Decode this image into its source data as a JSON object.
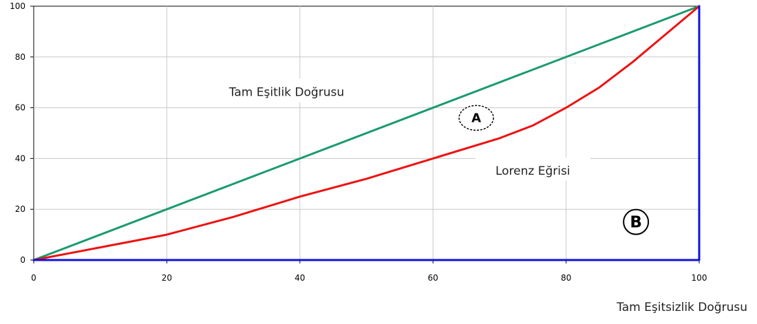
{
  "chart_data": {
    "type": "line",
    "xlim": [
      0,
      100
    ],
    "ylim": [
      0,
      100
    ],
    "x_ticks": [
      0,
      20,
      40,
      60,
      80,
      100
    ],
    "y_ticks": [
      0,
      20,
      40,
      60,
      80,
      100
    ],
    "grid": true,
    "series": [
      {
        "name": "Tam Eşitlik Doğrusu",
        "color": "#1a9a6e",
        "x": [
          0,
          100
        ],
        "y": [
          0,
          100
        ]
      },
      {
        "name": "Lorenz Eğrisi",
        "color": "#ee1111",
        "x": [
          0,
          10,
          20,
          30,
          40,
          50,
          60,
          70,
          75,
          80,
          85,
          90,
          95,
          100
        ],
        "y": [
          0,
          5,
          10,
          17,
          25,
          32,
          40,
          48,
          53,
          60,
          68,
          78,
          89,
          100
        ]
      },
      {
        "name": "Tam Eşitsizlik Doğrusu",
        "color": "#1111dd",
        "x": [
          0,
          100,
          100
        ],
        "y": [
          0,
          0,
          100
        ]
      }
    ],
    "annotations": [
      {
        "text": "Tam Eşitlik Doğrusu",
        "x": 38,
        "y": 66
      },
      {
        "text": "Lorenz Eğrisi",
        "x": 75,
        "y": 35
      }
    ],
    "markers": [
      {
        "text": "A",
        "x": 66.5,
        "y": 56
      },
      {
        "text": "B",
        "x": 90.5,
        "y": 15
      }
    ],
    "axis_note": "Tam Eşitsizlik Doğrusu"
  }
}
